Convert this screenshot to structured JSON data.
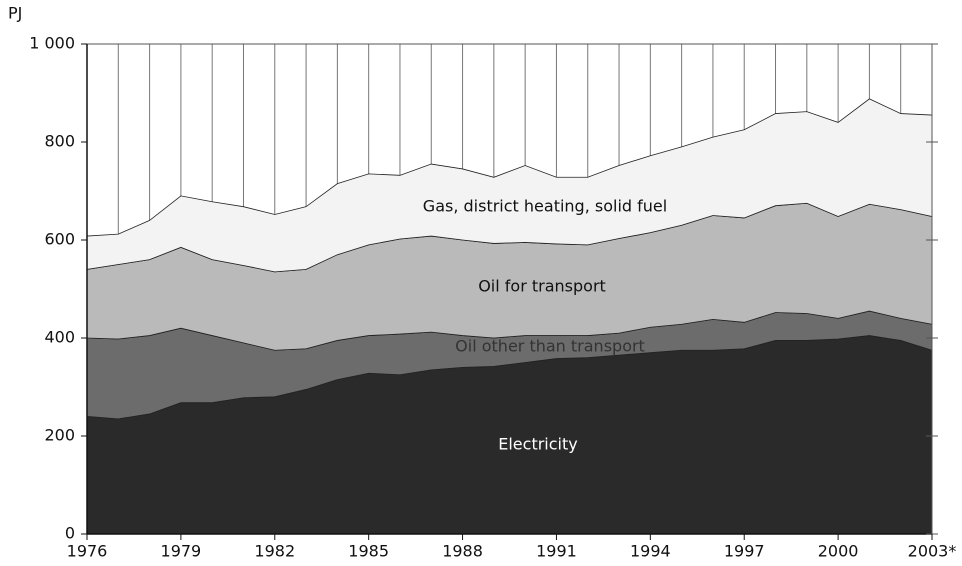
{
  "chart_data": {
    "type": "stacked-area",
    "y_axis_label": "PJ",
    "x": [
      1976,
      1977,
      1978,
      1979,
      1980,
      1981,
      1982,
      1983,
      1984,
      1985,
      1986,
      1987,
      1988,
      1989,
      1990,
      1991,
      1992,
      1993,
      1994,
      1995,
      1996,
      1997,
      1998,
      1999,
      2000,
      2001,
      2002,
      2003
    ],
    "xlim": [
      1976,
      2003
    ],
    "xticks": [
      1976,
      1979,
      1982,
      1985,
      1988,
      1991,
      1994,
      1997,
      2000,
      {
        "value": 2003,
        "label": "2003*"
      }
    ],
    "ylim": [
      0,
      1000
    ],
    "yticks": [
      0,
      200,
      400,
      600,
      800,
      {
        "value": 1000,
        "label": "1 000"
      }
    ],
    "grid": true,
    "series": [
      {
        "name": "Electricity",
        "color": "#2a2a2a",
        "values": [
          240,
          235,
          245,
          268,
          268,
          278,
          280,
          295,
          315,
          328,
          325,
          335,
          340,
          342,
          350,
          358,
          360,
          365,
          370,
          375,
          375,
          378,
          395,
          395,
          398,
          405,
          395,
          375
        ]
      },
      {
        "name": "Oil other than transport",
        "color": "#6c6c6c",
        "values": [
          160,
          163,
          160,
          152,
          137,
          112,
          95,
          83,
          80,
          77,
          83,
          77,
          65,
          58,
          55,
          47,
          45,
          45,
          52,
          53,
          63,
          54,
          57,
          55,
          42,
          50,
          45,
          53
        ]
      },
      {
        "name": "Oil for transport",
        "color": "#bababa",
        "values": [
          140,
          152,
          155,
          165,
          155,
          158,
          160,
          162,
          175,
          185,
          194,
          196,
          195,
          193,
          190,
          187,
          185,
          193,
          193,
          202,
          212,
          213,
          218,
          225,
          208,
          218,
          222,
          220
        ]
      },
      {
        "name": "Gas, district heating, solid fuel",
        "color": "#f3f3f3",
        "values": [
          68,
          62,
          80,
          105,
          118,
          120,
          117,
          128,
          145,
          145,
          130,
          147,
          145,
          135,
          157,
          136,
          138,
          149,
          157,
          160,
          160,
          180,
          188,
          187,
          192,
          215,
          196,
          207
        ]
      }
    ]
  }
}
